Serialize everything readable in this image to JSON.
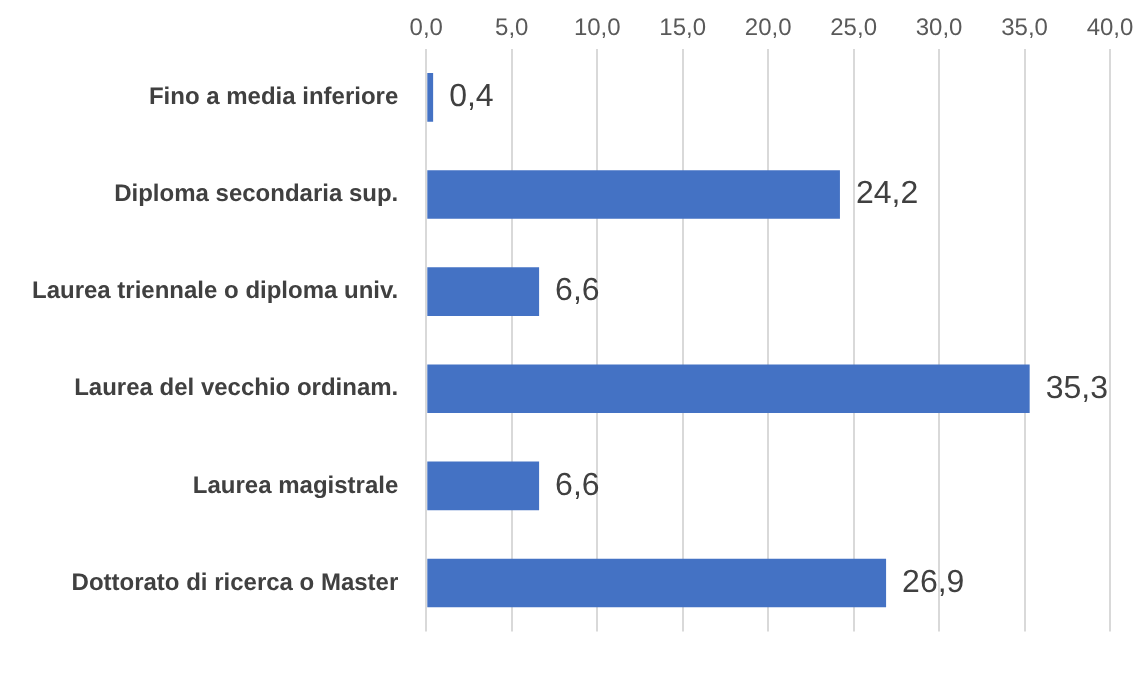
{
  "chart_data": {
    "type": "bar",
    "orientation": "horizontal",
    "categories": [
      "Fino a media inferiore",
      "Diploma secondaria sup.",
      "Laurea triennale o diploma univ.",
      "Laurea del vecchio ordinam.",
      "Laurea magistrale",
      "Dottorato di ricerca o Master"
    ],
    "values": [
      0.4,
      24.2,
      6.6,
      35.3,
      6.6,
      26.9
    ],
    "value_labels": [
      "0,4",
      "24,2",
      "6,6",
      "35,3",
      "6,6",
      "26,9"
    ],
    "color": "#4472c4",
    "xlim": [
      0,
      40
    ],
    "xticks": [
      {
        "value": 0,
        "label": "0,0"
      },
      {
        "value": 5,
        "label": "5,0"
      },
      {
        "value": 10,
        "label": "10,0"
      },
      {
        "value": 15,
        "label": "15,0"
      },
      {
        "value": 20,
        "label": "20,0"
      },
      {
        "value": 25,
        "label": "25,0"
      },
      {
        "value": 30,
        "label": "30,0"
      },
      {
        "value": 35,
        "label": "35,0"
      },
      {
        "value": 40,
        "label": "40,0"
      }
    ],
    "grid": "x"
  }
}
